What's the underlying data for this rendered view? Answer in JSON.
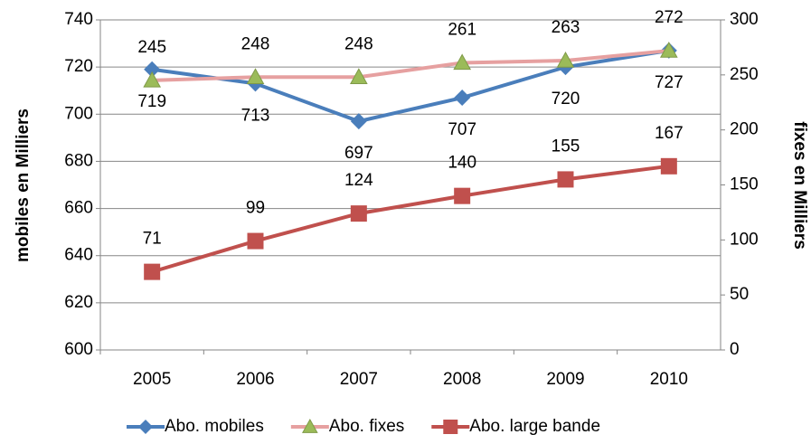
{
  "chart_data": {
    "type": "line",
    "categories": [
      "2005",
      "2006",
      "2007",
      "2008",
      "2009",
      "2010"
    ],
    "series": [
      {
        "name": "Abo. mobiles",
        "color": "#4a7ebb",
        "marker": "diamond",
        "values": [
          719,
          713,
          697,
          707,
          720,
          727
        ]
      },
      {
        "name": "Abo. fixes",
        "color": "#e6a0a0",
        "marker": "triangle",
        "marker_color": "#9bbb59",
        "axis": "y2",
        "values": [
          245,
          248,
          248,
          261,
          263,
          272
        ]
      },
      {
        "name": "Abo. large bande",
        "color": "#c0504d",
        "marker": "square",
        "axis": "y2",
        "values": [
          71,
          99,
          124,
          140,
          155,
          167
        ]
      }
    ],
    "ylabel": "mobiles en Milliers",
    "y2label": "fixes en Milliers",
    "ylim": [
      600,
      740
    ],
    "yticks": [
      600,
      620,
      640,
      660,
      680,
      700,
      720,
      740
    ],
    "y2lim": [
      0,
      300
    ],
    "y2ticks": [
      0,
      50,
      100,
      150,
      200,
      250,
      300
    ],
    "grid": true,
    "legend": "bottom"
  }
}
